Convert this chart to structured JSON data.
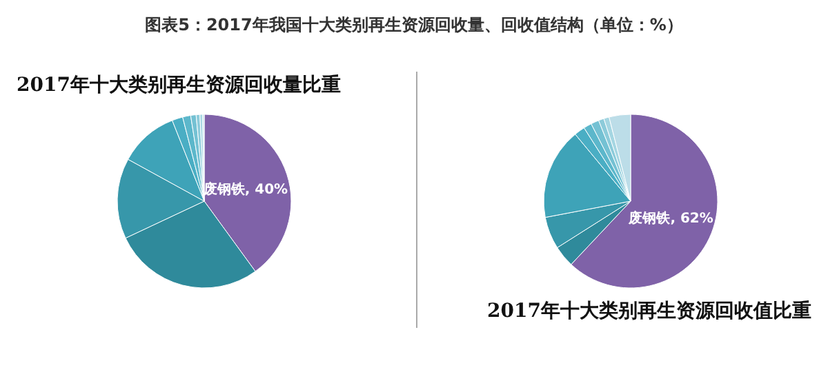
{
  "chart_data": [
    {
      "type": "pie",
      "title": "图表5：2017年我国十大类别再生资源回收量、回收值结构（单位：%）",
      "subtitle": "2017年十大类别再生资源回收量比重",
      "categories": [
        "废钢铁",
        null,
        null,
        null,
        null,
        null,
        null,
        null,
        null,
        null
      ],
      "values": [
        40,
        28,
        15,
        11,
        2,
        1.5,
        1,
        0.7,
        0.5,
        0.3
      ],
      "value_labels": [
        "40%",
        null,
        null,
        null,
        null,
        null,
        null,
        null,
        null,
        null
      ],
      "colors": [
        "#7f62a8",
        "#2f8a9b",
        "#3797aa",
        "#3ea3b8",
        "#4aaec4",
        "#5cb7cb",
        "#74c1d3",
        "#8ccbda",
        "#a5d6e2",
        "#c2e3ec"
      ]
    },
    {
      "type": "pie",
      "title": "2017年十大类别再生资源回收值比重",
      "categories": [
        "废钢铁",
        null,
        null,
        null,
        null,
        null,
        null,
        null,
        null,
        null
      ],
      "values": [
        62,
        4,
        6,
        17,
        2,
        1.5,
        1.5,
        1,
        1,
        4
      ],
      "value_labels": [
        "62%",
        null,
        null,
        null,
        null,
        null,
        null,
        null,
        null,
        null
      ],
      "colors": [
        "#7f62a8",
        "#2f8a9b",
        "#3797aa",
        "#3ea3b8",
        "#4aaec4",
        "#5cb7cb",
        "#74c1d3",
        "#8ccbda",
        "#a5d6e2",
        "#bcdde8"
      ]
    }
  ]
}
